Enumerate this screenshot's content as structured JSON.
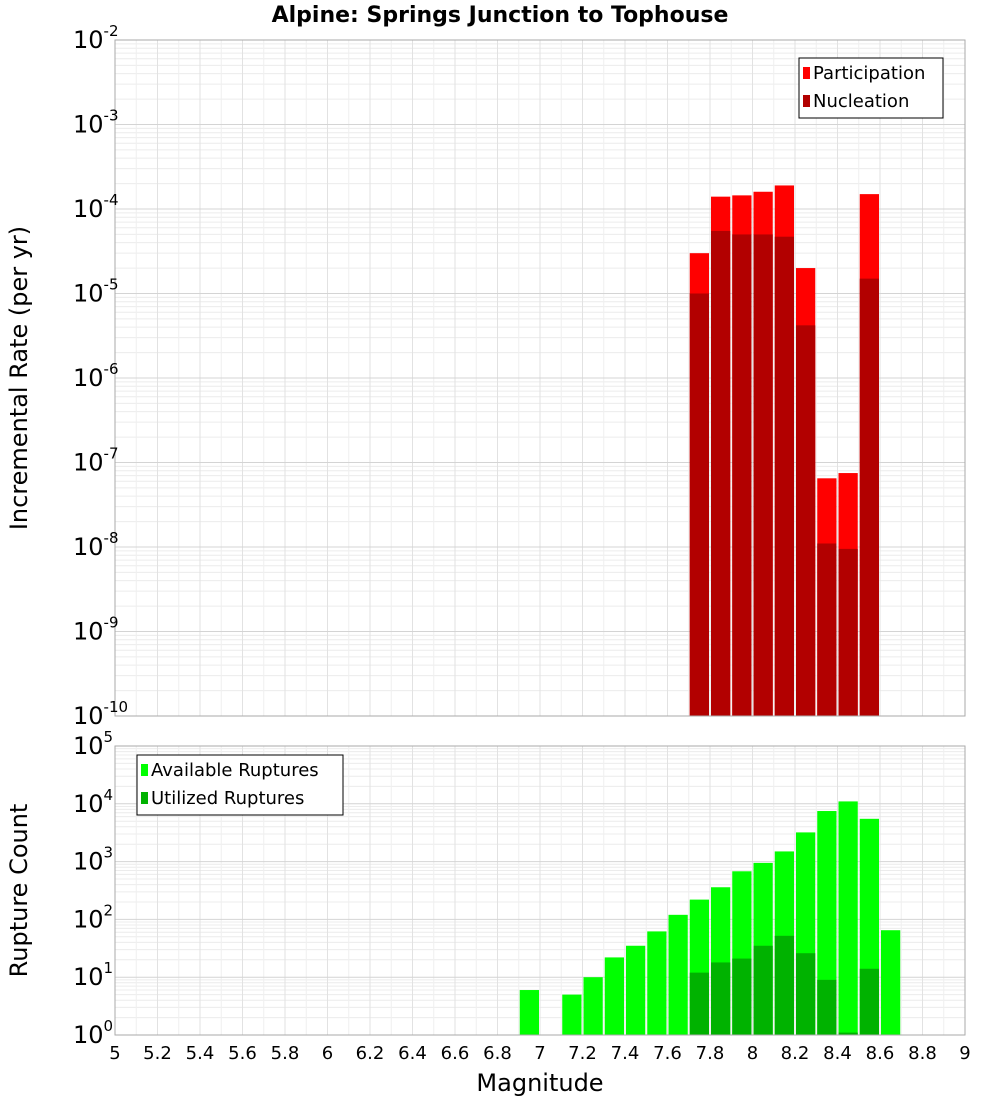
{
  "chart_data": [
    {
      "type": "bar",
      "title": "Alpine: Springs Junction to Tophouse",
      "xlabel": "",
      "ylabel": "Incremental Rate (per yr)",
      "yscale": "log",
      "ylim_exponents": [
        -10,
        -2
      ],
      "xlim": [
        5,
        9
      ],
      "grid": true,
      "legend_position": "top-right",
      "bin_width": 0.1,
      "series": [
        {
          "name": "Participation",
          "color": "#ff0000",
          "x": [
            7.75,
            7.85,
            7.95,
            8.05,
            8.15,
            8.25,
            8.35,
            8.45,
            8.55
          ],
          "values": [
            3e-05,
            0.00014,
            0.000145,
            0.00016,
            0.00019,
            2e-05,
            6.5e-08,
            7.5e-08,
            0.00015
          ]
        },
        {
          "name": "Nucleation",
          "color": "#b20000",
          "x": [
            7.75,
            7.85,
            7.95,
            8.05,
            8.15,
            8.25,
            8.35,
            8.45,
            8.55
          ],
          "values": [
            1e-05,
            5.5e-05,
            5e-05,
            5e-05,
            4.7e-05,
            4.2e-06,
            1.1e-08,
            9.5e-09,
            1.5e-05
          ]
        }
      ]
    },
    {
      "type": "bar",
      "title": "",
      "xlabel": "Magnitude",
      "ylabel": "Rupture Count",
      "yscale": "log",
      "ylim_exponents": [
        0,
        5
      ],
      "xlim": [
        5,
        9
      ],
      "grid": true,
      "legend_position": "top-left",
      "bin_width": 0.1,
      "xticks": [
        "5",
        "5.2",
        "5.4",
        "5.6",
        "5.8",
        "6",
        "6.2",
        "6.4",
        "6.6",
        "6.8",
        "7",
        "7.2",
        "7.4",
        "7.6",
        "7.8",
        "8",
        "8.2",
        "8.4",
        "8.6",
        "8.8",
        "9"
      ],
      "series": [
        {
          "name": "Available Ruptures",
          "color": "#00ff00",
          "x": [
            6.95,
            7.15,
            7.25,
            7.35,
            7.45,
            7.55,
            7.65,
            7.75,
            7.85,
            7.95,
            8.05,
            8.15,
            8.25,
            8.35,
            8.45,
            8.55,
            8.65
          ],
          "values": [
            6,
            5,
            10,
            22,
            35,
            62,
            120,
            220,
            360,
            680,
            950,
            1500,
            3200,
            7500,
            11000,
            5500,
            65
          ]
        },
        {
          "name": "Utilized Ruptures",
          "color": "#00b200",
          "x": [
            7.75,
            7.85,
            7.95,
            8.05,
            8.15,
            8.25,
            8.35,
            8.45,
            8.55
          ],
          "values": [
            12,
            18,
            21,
            35,
            52,
            26,
            9,
            1.1,
            14
          ]
        }
      ]
    }
  ]
}
